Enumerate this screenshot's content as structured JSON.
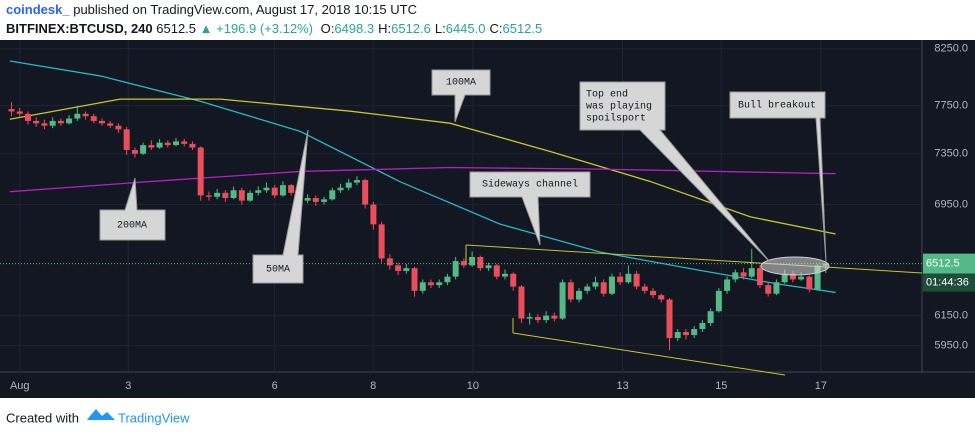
{
  "header": {
    "author": "coindesk_",
    "published": "published on TradingView.com, August 17, 2018 10:15 UTC",
    "symbol": "BITFINEX:BTCUSD, 240",
    "last": "6512.5",
    "change": "▲ +196.9 (+3.12%)",
    "quote": [
      {
        "label": "O:",
        "value": "6498.3"
      },
      {
        "label": "H:",
        "value": "6512.6"
      },
      {
        "label": "L:",
        "value": "6445.0"
      },
      {
        "label": "C:",
        "value": "6512.5"
      }
    ]
  },
  "chart_data": {
    "type": "candlestick",
    "log_scale": true,
    "up_color": "#53b987",
    "down_color": "#eb4d5c",
    "categories": [
      null,
      null,
      null,
      null,
      null,
      null,
      null,
      null,
      null,
      null,
      null,
      null,
      null,
      null,
      null,
      null,
      null,
      null,
      null,
      null,
      null,
      null,
      null,
      null,
      null,
      null,
      null,
      null,
      null,
      null,
      null,
      null,
      null,
      null,
      null,
      null,
      null,
      null,
      null,
      null,
      null,
      null,
      null,
      null,
      null,
      null,
      null,
      null,
      null,
      null,
      null,
      null,
      null,
      null,
      null,
      null,
      null,
      null,
      null,
      null,
      null,
      null,
      null,
      null,
      null,
      null,
      null,
      null,
      null,
      null,
      null,
      null,
      null,
      null,
      null,
      null,
      null,
      null,
      null,
      null,
      null,
      null,
      null,
      null,
      null,
      null,
      null,
      null,
      null,
      null,
      null,
      null,
      null,
      null,
      null,
      null,
      null,
      null,
      null,
      null
    ],
    "ohlc": [
      [
        7720,
        7780,
        7660,
        7700
      ],
      [
        7700,
        7730,
        7650,
        7680
      ],
      [
        7680,
        7700,
        7590,
        7620
      ],
      [
        7620,
        7650,
        7570,
        7600
      ],
      [
        7600,
        7630,
        7550,
        7580
      ],
      [
        7580,
        7650,
        7560,
        7620
      ],
      [
        7620,
        7640,
        7580,
        7600
      ],
      [
        7600,
        7670,
        7590,
        7640
      ],
      [
        7640,
        7750,
        7620,
        7680
      ],
      [
        7680,
        7700,
        7630,
        7660
      ],
      [
        7660,
        7680,
        7600,
        7620
      ],
      [
        7620,
        7640,
        7580,
        7600
      ],
      [
        7600,
        7620,
        7560,
        7580
      ],
      [
        7580,
        7600,
        7520,
        7550
      ],
      [
        7550,
        7570,
        7340,
        7380
      ],
      [
        7380,
        7400,
        7320,
        7350
      ],
      [
        7350,
        7440,
        7340,
        7420
      ],
      [
        7420,
        7460,
        7380,
        7400
      ],
      [
        7400,
        7470,
        7390,
        7440
      ],
      [
        7440,
        7460,
        7400,
        7420
      ],
      [
        7420,
        7480,
        7410,
        7450
      ],
      [
        7450,
        7470,
        7410,
        7430
      ],
      [
        7430,
        7450,
        7380,
        7400
      ],
      [
        7400,
        7410,
        6980,
        7020
      ],
      [
        7020,
        7050,
        6980,
        7010
      ],
      [
        7010,
        7070,
        6990,
        7040
      ],
      [
        7040,
        7060,
        6970,
        7000
      ],
      [
        7000,
        7090,
        6990,
        7060
      ],
      [
        7060,
        7080,
        6950,
        6980
      ],
      [
        6980,
        7060,
        6970,
        7040
      ],
      [
        7040,
        7090,
        7020,
        7060
      ],
      [
        7060,
        7120,
        7040,
        7080
      ],
      [
        7080,
        7100,
        7000,
        7020
      ],
      [
        7020,
        7130,
        7010,
        7100
      ],
      [
        7100,
        7110,
        7020,
        7040
      ],
      [
        7040,
        7060,
        6950,
        6980
      ],
      [
        6980,
        7030,
        6960,
        7000
      ],
      [
        7000,
        7020,
        6940,
        6970
      ],
      [
        6970,
        7010,
        6950,
        6990
      ],
      [
        6990,
        7080,
        6980,
        7060
      ],
      [
        7060,
        7110,
        7040,
        7080
      ],
      [
        7080,
        7150,
        7060,
        7120
      ],
      [
        7120,
        7170,
        7100,
        7140
      ],
      [
        7140,
        7150,
        6920,
        6950
      ],
      [
        6950,
        6970,
        6760,
        6800
      ],
      [
        6800,
        6820,
        6520,
        6550
      ],
      [
        6550,
        6580,
        6470,
        6500
      ],
      [
        6500,
        6520,
        6430,
        6460
      ],
      [
        6460,
        6510,
        6440,
        6480
      ],
      [
        6480,
        6490,
        6280,
        6320
      ],
      [
        6320,
        6400,
        6300,
        6380
      ],
      [
        6380,
        6400,
        6340,
        6360
      ],
      [
        6360,
        6400,
        6340,
        6380
      ],
      [
        6380,
        6440,
        6360,
        6420
      ],
      [
        6420,
        6560,
        6400,
        6530
      ],
      [
        6530,
        6550,
        6480,
        6500
      ],
      [
        6500,
        6600,
        6490,
        6560
      ],
      [
        6560,
        6570,
        6460,
        6480
      ],
      [
        6480,
        6520,
        6460,
        6500
      ],
      [
        6500,
        6510,
        6400,
        6420
      ],
      [
        6420,
        6470,
        6400,
        6440
      ],
      [
        6440,
        6450,
        6320,
        6350
      ],
      [
        6350,
        6360,
        6100,
        6130
      ],
      [
        6130,
        6170,
        6090,
        6140
      ],
      [
        6140,
        6160,
        6100,
        6120
      ],
      [
        6120,
        6180,
        6100,
        6150
      ],
      [
        6150,
        6170,
        6110,
        6130
      ],
      [
        6130,
        6400,
        6120,
        6380
      ],
      [
        6380,
        6400,
        6240,
        6260
      ],
      [
        6260,
        6340,
        6240,
        6320
      ],
      [
        6320,
        6370,
        6300,
        6350
      ],
      [
        6350,
        6420,
        6330,
        6380
      ],
      [
        6380,
        6400,
        6280,
        6300
      ],
      [
        6300,
        6440,
        6290,
        6420
      ],
      [
        6420,
        6450,
        6360,
        6380
      ],
      [
        6380,
        6500,
        6370,
        6440
      ],
      [
        6440,
        6460,
        6330,
        6350
      ],
      [
        6350,
        6370,
        6300,
        6320
      ],
      [
        6320,
        6340,
        6270,
        6290
      ],
      [
        6290,
        6300,
        6240,
        6260
      ],
      [
        6260,
        6270,
        5920,
        6000
      ],
      [
        6000,
        6060,
        5980,
        6040
      ],
      [
        6040,
        6060,
        5990,
        6020
      ],
      [
        6020,
        6080,
        6000,
        6060
      ],
      [
        6060,
        6120,
        6040,
        6100
      ],
      [
        6100,
        6200,
        6080,
        6180
      ],
      [
        6180,
        6340,
        6170,
        6320
      ],
      [
        6320,
        6420,
        6300,
        6400
      ],
      [
        6400,
        6470,
        6380,
        6450
      ],
      [
        6450,
        6480,
        6400,
        6420
      ],
      [
        6420,
        6620,
        6410,
        6480
      ],
      [
        6480,
        6500,
        6340,
        6360
      ],
      [
        6360,
        6380,
        6280,
        6300
      ],
      [
        6300,
        6400,
        6290,
        6380
      ],
      [
        6380,
        6470,
        6370,
        6440
      ],
      [
        6440,
        6460,
        6380,
        6400
      ],
      [
        6400,
        6450,
        6390,
        6420
      ],
      [
        6420,
        6430,
        6310,
        6330
      ],
      [
        6330,
        6510,
        6320,
        6498.3
      ],
      [
        6498.3,
        6512.6,
        6445,
        6512.5
      ]
    ],
    "lines": [
      {
        "color": "#26b6c7",
        "x": [
          -0.2,
          10.8,
          22.9,
          35.1,
          47.2,
          59.4,
          71.6,
          83.7,
          93.5,
          100.2
        ],
        "values": [
          8140,
          8007,
          7788,
          7533,
          7128,
          6802,
          6595,
          6464,
          6365,
          6309
        ]
      },
      {
        "color": "#c9c42f",
        "x": [
          -0.2,
          13.2,
          25.4,
          41.2,
          53.3,
          65.5,
          77.7,
          89.8,
          100.2
        ],
        "values": [
          7634,
          7805,
          7805,
          7702,
          7601,
          7368,
          7128,
          6857,
          6728
        ]
      },
      {
        "color": "#b51fc1",
        "x": [
          -0.2,
          16.8,
          35.1,
          53.3,
          71.6,
          100.2
        ],
        "values": [
          7049,
          7128,
          7208,
          7239,
          7226,
          7190
        ]
      }
    ],
    "ylim": [
      5780,
      8330
    ],
    "yticks": [
      {
        "value": 8250,
        "label": "8250.0"
      },
      {
        "value": 7750,
        "label": "7750.0"
      },
      {
        "value": 7350,
        "label": "7350.0"
      },
      {
        "value": 6950,
        "label": "6950.0"
      },
      {
        "value": 6150,
        "label": "6150.0"
      },
      {
        "value": 5950,
        "label": "5950.0"
      }
    ],
    "xlim": [
      -1.4,
      110.7
    ],
    "xticks": [
      {
        "value": 1.0,
        "label": "Aug"
      },
      {
        "value": 14.2,
        "label": "3"
      },
      {
        "value": 32.0,
        "label": "6"
      },
      {
        "value": 43.97,
        "label": "8"
      },
      {
        "value": 56.1,
        "label": "10"
      },
      {
        "value": 74.3,
        "label": "13"
      },
      {
        "value": 86.3,
        "label": "15"
      },
      {
        "value": 98.4,
        "label": "17"
      }
    ],
    "last_price": 6512.5,
    "countdown": "01:44:36",
    "annotations": [
      [
        "100MA"
      ],
      [
        "Top end",
        "was playing",
        "spoilsport"
      ],
      [
        "Bull breakout"
      ],
      [
        "Sideways channel"
      ],
      [
        "200MA"
      ],
      [
        "50MA"
      ]
    ]
  },
  "footer": {
    "text": "Created with",
    "brand": "TradingView"
  }
}
